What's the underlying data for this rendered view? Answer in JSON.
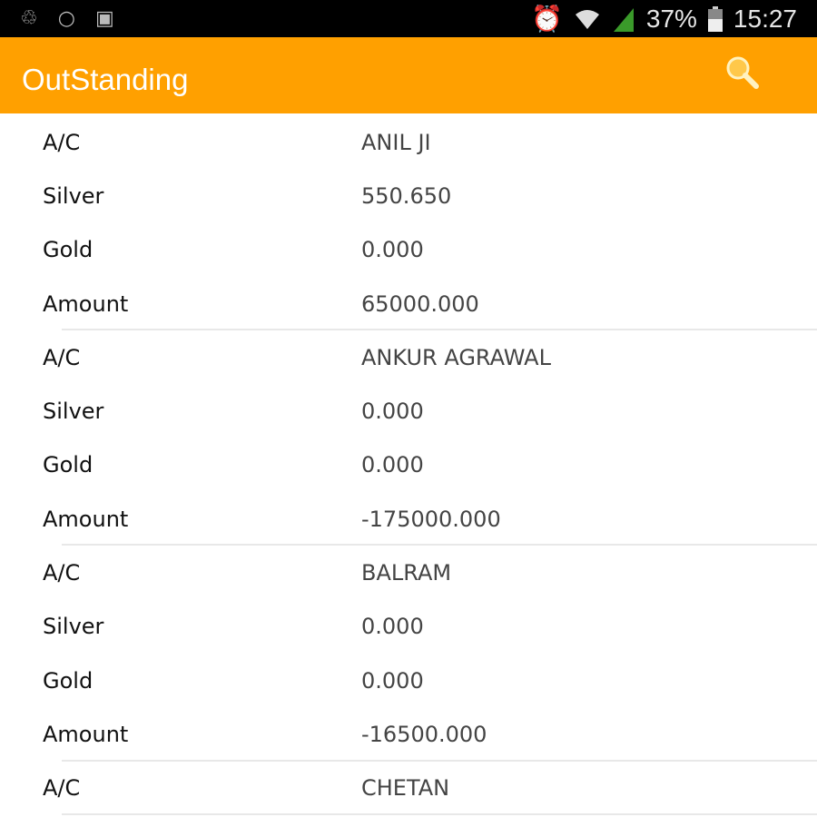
{
  "status_bar": {
    "battery": "37%",
    "time": "15:27",
    "icons": [
      "sync-icon",
      "search-icon",
      "gallery-icon",
      "alarm-icon",
      "wifi-icon",
      "signal-icon",
      "battery-icon"
    ]
  },
  "app_bar": {
    "title": "OutStanding",
    "search_icon": "search-icon",
    "accent": "#FFA000"
  },
  "labels": {
    "ac": "A/C",
    "silver": "Silver",
    "gold": "Gold",
    "amount": "Amount"
  },
  "records": [
    {
      "ac": "ANIL JI",
      "silver": "550.650",
      "gold": "0.000",
      "amount": "65000.000"
    },
    {
      "ac": "ANKUR AGRAWAL",
      "silver": "0.000",
      "gold": "0.000",
      "amount": "-175000.000"
    },
    {
      "ac": "BALRAM",
      "silver": "0.000",
      "gold": "0.000",
      "amount": "-16500.000"
    },
    {
      "ac": "CHETAN"
    }
  ]
}
